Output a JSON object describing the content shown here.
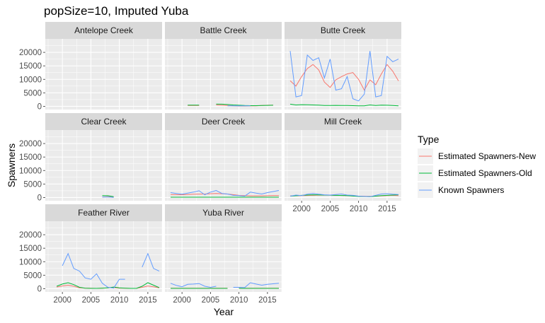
{
  "title": "popSize=10, Imputed Yuba",
  "chart_data": {
    "type": "line",
    "title": "popSize=10, Imputed Yuba",
    "xlabel": "Year",
    "ylabel": "Spawners",
    "xlim": [
      1997,
      2017.5
    ],
    "ylim": [
      -1200,
      25000
    ],
    "x_ticks": [
      2000,
      2005,
      2010,
      2015
    ],
    "y_ticks": [
      0,
      5000,
      10000,
      15000,
      20000
    ],
    "grid": true,
    "legend_position": "right",
    "legend": {
      "title": "Type",
      "entries": [
        {
          "name": "Estimated Spawners-New",
          "color": "#F8766D"
        },
        {
          "name": "Estimated Spawners-Old",
          "color": "#00BA38"
        },
        {
          "name": "Known Spawners",
          "color": "#619CFF"
        }
      ]
    },
    "panels": [
      {
        "name": "Antelope Creek",
        "series": [
          {
            "name": "Estimated Spawners-New",
            "x": [],
            "y": []
          },
          {
            "name": "Estimated Spawners-Old",
            "x": [],
            "y": []
          },
          {
            "name": "Known Spawners",
            "x": [],
            "y": []
          }
        ]
      },
      {
        "name": "Battle Creek",
        "series": [
          {
            "name": "Estimated Spawners-New",
            "x": [
              2001,
              2002,
              2003,
              null,
              2006,
              2007,
              2008,
              2009,
              2010,
              2011,
              2012,
              2013,
              2014,
              2015,
              2016
            ],
            "y": [
              300,
              300,
              300,
              null,
              500,
              400,
              300,
              150,
              100,
              100,
              150,
              200,
              300,
              400,
              450
            ]
          },
          {
            "name": "Estimated Spawners-Old",
            "x": [
              2001,
              2002,
              2003,
              null,
              2006,
              2007,
              2008,
              2009,
              2010,
              2011,
              2012,
              2013,
              2014,
              2015,
              2016
            ],
            "y": [
              450,
              450,
              450,
              null,
              850,
              800,
              650,
              500,
              400,
              300,
              250,
              250,
              300,
              350,
              400
            ]
          },
          {
            "name": "Known Spawners",
            "x": [
              2008,
              2009,
              2010,
              2011,
              2012
            ],
            "y": [
              200,
              150,
              150,
              150,
              200
            ]
          }
        ]
      },
      {
        "name": "Butte Creek",
        "series": [
          {
            "name": "Estimated Spawners-New",
            "x": [
              1998,
              1999,
              2000,
              2001,
              2002,
              2003,
              2004,
              2005,
              2006,
              2007,
              2008,
              2009,
              2010,
              2011,
              2012,
              2013,
              2014,
              2015,
              2016,
              2017
            ],
            "y": [
              9500,
              7500,
              11000,
              14000,
              15500,
              13500,
              9000,
              7000,
              9800,
              11000,
              12000,
              12500,
              10000,
              6000,
              9800,
              8000,
              12000,
              15500,
              13000,
              9400
            ]
          },
          {
            "name": "Estimated Spawners-Old",
            "x": [
              1998,
              1999,
              2000,
              2001,
              2002,
              2003,
              2004,
              2005,
              2006,
              2007,
              2008,
              2009,
              2010,
              2011,
              2012,
              2013,
              2014,
              2015,
              2016,
              2017
            ],
            "y": [
              800,
              500,
              600,
              550,
              500,
              450,
              300,
              300,
              350,
              300,
              300,
              250,
              200,
              200,
              500,
              300,
              450,
              400,
              300,
              200
            ]
          },
          {
            "name": "Known Spawners",
            "x": [
              1998,
              1999,
              2000,
              2001,
              2002,
              2003,
              2004,
              2005,
              2006,
              2007,
              2008,
              2009,
              2010,
              2011,
              2012,
              2013,
              2014,
              2015,
              2016,
              2017
            ],
            "y": [
              20500,
              3500,
              4000,
              19000,
              17000,
              18000,
              10500,
              17500,
              6000,
              6500,
              11000,
              2800,
              2000,
              4500,
              20500,
              3500,
              4000,
              18500,
              16500,
              17500
            ]
          }
        ]
      },
      {
        "name": "Clear Creek",
        "series": [
          {
            "name": "Estimated Spawners-New",
            "x": [
              2007,
              2008,
              2009
            ],
            "y": [
              200,
              300,
              100
            ]
          },
          {
            "name": "Estimated Spawners-Old",
            "x": [
              2007,
              2008,
              2009
            ],
            "y": [
              700,
              650,
              300
            ]
          },
          {
            "name": "Known Spawners",
            "x": [
              2007,
              2008,
              2009
            ],
            "y": [
              150,
              200,
              50
            ]
          }
        ]
      },
      {
        "name": "Deer Creek",
        "series": [
          {
            "name": "Estimated Spawners-New",
            "x": [
              1998,
              2000,
              2002,
              2004,
              2006,
              2008,
              2010,
              2012,
              2014,
              2016,
              2017
            ],
            "y": [
              1100,
              1000,
              1200,
              1300,
              1500,
              1300,
              800,
              600,
              600,
              700,
              700
            ]
          },
          {
            "name": "Estimated Spawners-Old",
            "x": [
              1998,
              2000,
              2002,
              2004,
              2006,
              2008,
              2010,
              2012,
              2014,
              2016,
              2017
            ],
            "y": [
              100,
              100,
              100,
              100,
              100,
              100,
              100,
              100,
              100,
              100,
              100
            ]
          },
          {
            "name": "Known Spawners",
            "x": [
              1998,
              1999,
              2000,
              2001,
              2002,
              2003,
              2004,
              2005,
              2006,
              2007,
              2008,
              2009,
              2010,
              2011,
              2012,
              2013,
              2014,
              2015,
              2016,
              2017
            ],
            "y": [
              1800,
              1500,
              1200,
              1600,
              2000,
              2500,
              1000,
              2000,
              2600,
              1500,
              1300,
              800,
              700,
              500,
              2000,
              1600,
              1300,
              1800,
              2200,
              2600
            ]
          }
        ]
      },
      {
        "name": "Mill Creek",
        "series": [
          {
            "name": "Estimated Spawners-New",
            "x": [
              1998,
              2000,
              2002,
              2004,
              2006,
              2008,
              2010,
              2012,
              2014,
              2016,
              2017
            ],
            "y": [
              600,
              700,
              800,
              900,
              800,
              700,
              500,
              400,
              600,
              800,
              700
            ]
          },
          {
            "name": "Estimated Spawners-Old",
            "x": [
              1998,
              2000,
              2002,
              2004,
              2006,
              2008,
              2010,
              2012,
              2014,
              2016,
              2017
            ],
            "y": [
              500,
              800,
              1000,
              900,
              800,
              700,
              400,
              300,
              700,
              900,
              1000
            ]
          },
          {
            "name": "Known Spawners",
            "x": [
              1998,
              1999,
              2000,
              2001,
              2002,
              2003,
              2004,
              2005,
              2006,
              2007,
              2008,
              2009,
              2010,
              2011,
              2012,
              2013,
              2014,
              2015,
              2016,
              2017
            ],
            "y": [
              500,
              900,
              700,
              1200,
              1500,
              1200,
              1000,
              900,
              1100,
              1300,
              900,
              800,
              500,
              400,
              300,
              800,
              1300,
              1400,
              1200,
              1100
            ]
          }
        ]
      },
      {
        "name": "Feather River",
        "series": [
          {
            "name": "Estimated Spawners-New",
            "x": [
              1999,
              2000,
              2001,
              2002,
              2003,
              2004,
              2005,
              2006,
              2007,
              2008,
              2009,
              2010,
              2011,
              2012,
              2013,
              2014,
              2015,
              2016,
              2017
            ],
            "y": [
              600,
              1000,
              1300,
              900,
              300,
              200,
              150,
              100,
              200,
              300,
              400,
              200,
              150,
              100,
              100,
              500,
              1000,
              700,
              300
            ]
          },
          {
            "name": "Estimated Spawners-Old",
            "x": [
              1999,
              2000,
              2001,
              2002,
              2003,
              2004,
              2005,
              2006,
              2007,
              2008,
              2009,
              2010,
              2011,
              2012,
              2013,
              2014,
              2015,
              2016,
              2017
            ],
            "y": [
              900,
              1700,
              2200,
              1500,
              500,
              200,
              100,
              100,
              200,
              300,
              600,
              300,
              200,
              100,
              100,
              900,
              2200,
              1300,
              400
            ]
          },
          {
            "name": "Known Spawners",
            "x": [
              2000,
              2001,
              2002,
              2003,
              2004,
              2005,
              2006,
              2007,
              2008,
              2009,
              2010,
              2011,
              null,
              2014,
              2015,
              2016,
              2017
            ],
            "y": [
              8500,
              13000,
              7500,
              6500,
              4000,
              3500,
              5500,
              2000,
              500,
              200,
              3500,
              3500,
              null,
              8000,
              13000,
              7500,
              6500
            ]
          }
        ]
      },
      {
        "name": "Yuba River",
        "series": [
          {
            "name": "Estimated Spawners-New",
            "x": [
              1998,
              2000,
              2002,
              2004,
              2006,
              2008,
              null,
              2010,
              2012,
              2014,
              2016,
              2017
            ],
            "y": [
              150,
              150,
              150,
              150,
              150,
              150,
              null,
              150,
              150,
              150,
              150,
              150
            ]
          },
          {
            "name": "Estimated Spawners-Old",
            "x": [
              1998,
              2000,
              2002,
              2004,
              2006,
              2008,
              null,
              2010,
              2012,
              2014,
              2016,
              2017
            ],
            "y": [
              100,
              100,
              100,
              100,
              100,
              100,
              null,
              100,
              100,
              100,
              100,
              100
            ]
          },
          {
            "name": "Known Spawners",
            "x": [
              1998,
              1999,
              2000,
              2001,
              2002,
              2003,
              2004,
              2005,
              2006,
              null,
              2009,
              2010,
              2011,
              2012,
              2013,
              2014,
              2015,
              2016,
              2017
            ],
            "y": [
              2000,
              1200,
              700,
              1600,
              1700,
              1900,
              900,
              500,
              900,
              null,
              500,
              500,
              400,
              2200,
              1700,
              1300,
              1600,
              1800,
              2000
            ]
          }
        ]
      }
    ]
  }
}
